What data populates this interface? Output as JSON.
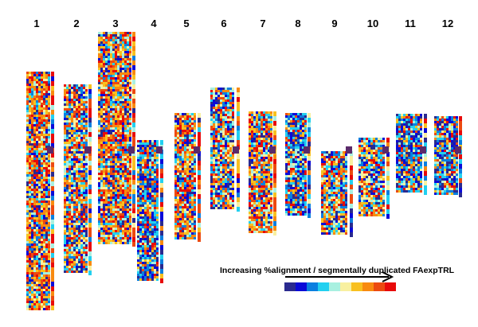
{
  "chromosomes": [
    {
      "label": "1"
    },
    {
      "label": "2"
    },
    {
      "label": "3"
    },
    {
      "label": "4"
    },
    {
      "label": "5"
    },
    {
      "label": "6"
    },
    {
      "label": "7"
    },
    {
      "label": "8"
    },
    {
      "label": "9"
    },
    {
      "label": "10"
    },
    {
      "label": "11"
    },
    {
      "label": "12"
    }
  ],
  "legend": {
    "title": "Increasing %alignment / segmentally duplicated FAexpTRL",
    "colors": [
      "#2a2a8f",
      "#0a0ad8",
      "#0a7fe0",
      "#22d0f0",
      "#a8f0e0",
      "#f8f0a0",
      "#f8c020",
      "#f88a10",
      "#ec4a10",
      "#e80a0a"
    ]
  }
}
